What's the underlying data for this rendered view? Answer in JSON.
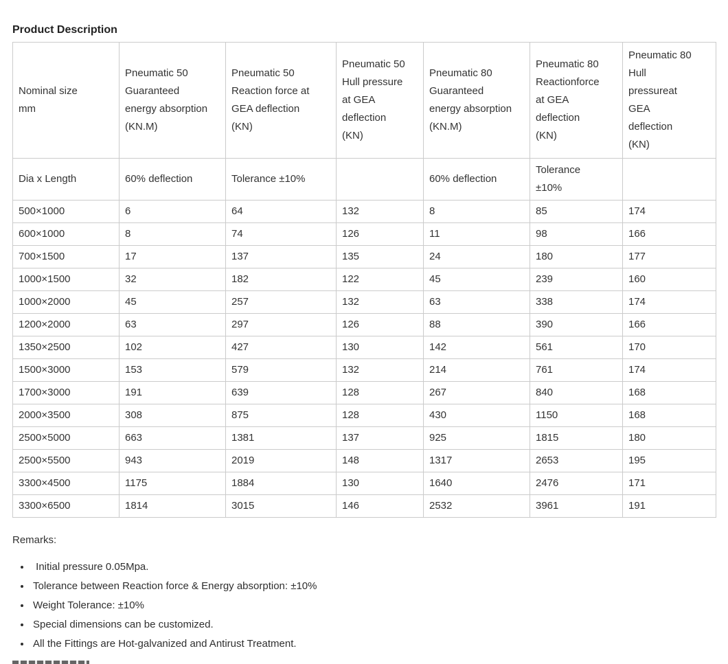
{
  "page": {
    "title": "Product Description"
  },
  "table": {
    "headers": [
      "Nominal size\nmm",
      "Pneumatic 50\nGuaranteed\nenergy absorption\n(KN.M)",
      "Pneumatic 50\nReaction force at\nGEA deflection\n(KN)",
      "Pneumatic 50\nHull pressure\nat GEA\ndeflection\n(KN)",
      "Pneumatic 80\nGuaranteed\nenergy absorption\n(KN.M)",
      "Pneumatic 80\nReactionforce\nat GEA\ndeflection\n(KN)",
      "Pneumatic 80\nHull\npressureat\nGEA\ndeflection\n(KN)"
    ],
    "subheaders": [
      "Dia x Length",
      "60% deflection",
      "Tolerance ±10%",
      "",
      "60% deflection",
      "Tolerance\n±10%",
      ""
    ],
    "rows": [
      [
        "500×1000",
        "6",
        "64",
        "132",
        "8",
        "85",
        "174"
      ],
      [
        "600×1000",
        "8",
        "74",
        "126",
        "11",
        "98",
        "166"
      ],
      [
        "700×1500",
        "17",
        "137",
        "135",
        "24",
        "180",
        "177"
      ],
      [
        "1000×1500",
        "32",
        "182",
        "122",
        "45",
        "239",
        "160"
      ],
      [
        "1000×2000",
        "45",
        "257",
        "132",
        "63",
        "338",
        "174"
      ],
      [
        "1200×2000",
        "63",
        "297",
        "126",
        "88",
        "390",
        "166"
      ],
      [
        "1350×2500",
        "102",
        "427",
        "130",
        "142",
        "561",
        "170"
      ],
      [
        "1500×3000",
        "153",
        "579",
        "132",
        "214",
        "761",
        "174"
      ],
      [
        "1700×3000",
        "191",
        "639",
        "128",
        "267",
        "840",
        "168"
      ],
      [
        "2000×3500",
        "308",
        "875",
        "128",
        "430",
        "1150",
        "168"
      ],
      [
        "2500×5000",
        "663",
        "1381",
        "137",
        "925",
        "1815",
        "180"
      ],
      [
        "2500×5500",
        "943",
        "2019",
        "148",
        "1317",
        "2653",
        "195"
      ],
      [
        "3300×4500",
        "1175",
        "1884",
        "130",
        "1640",
        "2476",
        "171"
      ],
      [
        "3300×6500",
        "1814",
        "3015",
        "146",
        "2532",
        "3961",
        "191"
      ]
    ]
  },
  "remarks": {
    "label": "Remarks:",
    "items": [
      " Initial pressure 0.05Mpa.",
      "Tolerance between Reaction force & Energy absorption: ±10%",
      "Weight Tolerance: ±10%",
      "Special dimensions can be customized.",
      "All the Fittings are Hot-galvanized and Antirust Treatment."
    ]
  },
  "colors": {
    "text": "#333333",
    "heading": "#222222",
    "table_border": "#cbcbcb",
    "background": "#ffffff"
  }
}
